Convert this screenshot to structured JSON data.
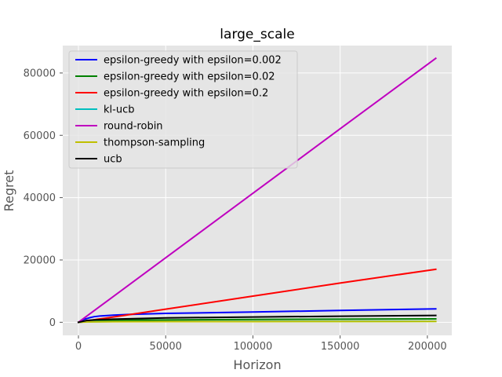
{
  "chart_data": {
    "type": "line",
    "title": "large_scale",
    "xlabel": "Horizon",
    "ylabel": "Regret",
    "xlim": [
      -9000,
      214000
    ],
    "ylim": [
      -4200,
      88800
    ],
    "xticks": [
      0,
      50000,
      100000,
      150000,
      200000
    ],
    "xtick_labels": [
      "0",
      "50000",
      "100000",
      "150000",
      "200000"
    ],
    "yticks": [
      0,
      20000,
      40000,
      60000,
      80000
    ],
    "ytick_labels": [
      "0",
      "20000",
      "40000",
      "60000",
      "80000"
    ],
    "grid": true,
    "legend_position": "top-left",
    "series": [
      {
        "name": "epsilon-greedy with epsilon=0.002",
        "color": "#0000ff",
        "x": [
          0,
          3000,
          6000,
          9000,
          13000,
          20000,
          30000,
          50000,
          100000,
          150000,
          204800
        ],
        "y": [
          0,
          900,
          1400,
          1800,
          2050,
          2300,
          2550,
          2850,
          3300,
          3800,
          4300
        ]
      },
      {
        "name": "epsilon-greedy with epsilon=0.02",
        "color": "#008000",
        "x": [
          0,
          3000,
          10000,
          20000,
          50000,
          100000,
          150000,
          204800
        ],
        "y": [
          0,
          300,
          550,
          650,
          750,
          900,
          1000,
          1100
        ]
      },
      {
        "name": "epsilon-greedy with epsilon=0.2",
        "color": "#ff0000",
        "x": [
          0,
          10000,
          25000,
          50000,
          100000,
          150000,
          204800
        ],
        "y": [
          0,
          900,
          2100,
          4200,
          8400,
          12600,
          17000
        ]
      },
      {
        "name": "kl-ucb",
        "color": "#00bfbf",
        "x": [
          0,
          5000,
          20000,
          50000,
          100000,
          150000,
          204800
        ],
        "y": [
          0,
          150,
          200,
          230,
          260,
          280,
          300
        ]
      },
      {
        "name": "round-robin",
        "color": "#bf00bf",
        "x": [
          0,
          50000,
          100000,
          150000,
          204800
        ],
        "y": [
          0,
          20700,
          41400,
          62100,
          84700
        ]
      },
      {
        "name": "thompson-sampling",
        "color": "#bfbf00",
        "x": [
          0,
          5000,
          20000,
          50000,
          100000,
          150000,
          204800
        ],
        "y": [
          0,
          120,
          170,
          200,
          220,
          240,
          260
        ]
      },
      {
        "name": "ucb",
        "color": "#000000",
        "x": [
          0,
          5000,
          10000,
          20000,
          50000,
          100000,
          150000,
          204800
        ],
        "y": [
          0,
          600,
          800,
          1000,
          1400,
          1700,
          1950,
          2200
        ]
      }
    ]
  }
}
